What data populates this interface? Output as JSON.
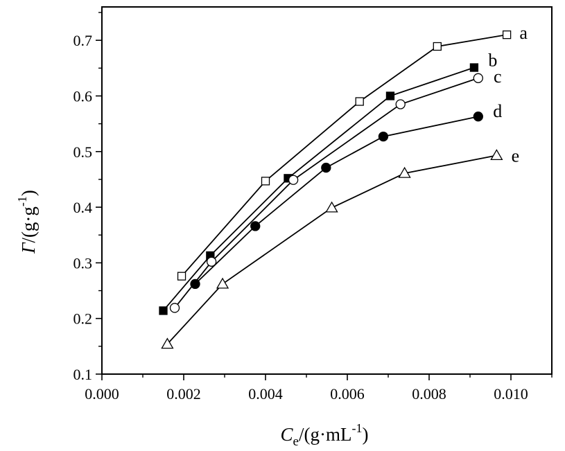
{
  "chart_data": {
    "type": "line",
    "title": "",
    "xlabel": {
      "symbol": "C",
      "subscript": "e",
      "unit_prefix": "/(g·mL",
      "unit_exp": "-1",
      "unit_suffix": ")"
    },
    "ylabel": {
      "symbol": "Γ",
      "unit_prefix": "/(g·g",
      "unit_exp": "-1",
      "unit_suffix": ")"
    },
    "xlim": [
      0.0,
      0.011
    ],
    "ylim": [
      0.1,
      0.76
    ],
    "xticks": [
      0.0,
      0.002,
      0.004,
      0.006,
      0.008,
      0.01
    ],
    "xtick_labels": [
      "0.000",
      "0.002",
      "0.004",
      "0.006",
      "0.008",
      "0.010"
    ],
    "yticks": [
      0.1,
      0.2,
      0.3,
      0.4,
      0.5,
      0.6,
      0.7
    ],
    "ytick_labels": [
      "0.1",
      "0.2",
      "0.3",
      "0.4",
      "0.5",
      "0.6",
      "0.7"
    ],
    "grid": false,
    "legend": "none",
    "series": [
      {
        "label": "a",
        "marker": "square-open",
        "x": [
          0.00195,
          0.004,
          0.0063,
          0.0082,
          0.0099
        ],
        "y": [
          0.276,
          0.447,
          0.59,
          0.689,
          0.71
        ]
      },
      {
        "label": "b",
        "marker": "square-filled",
        "x": [
          0.0015,
          0.00265,
          0.00455,
          0.00705,
          0.0091
        ],
        "y": [
          0.214,
          0.313,
          0.452,
          0.6,
          0.651
        ]
      },
      {
        "label": "c",
        "marker": "circle-open",
        "x": [
          0.00178,
          0.00268,
          0.00468,
          0.0073,
          0.0092
        ],
        "y": [
          0.219,
          0.302,
          0.449,
          0.585,
          0.632
        ]
      },
      {
        "label": "d",
        "marker": "circle-filled",
        "x": [
          0.00228,
          0.00375,
          0.00548,
          0.00688,
          0.0092
        ],
        "y": [
          0.262,
          0.366,
          0.471,
          0.527,
          0.563
        ]
      },
      {
        "label": "e",
        "marker": "triangle-open",
        "x": [
          0.0016,
          0.00295,
          0.00562,
          0.0074,
          0.00965
        ],
        "y": [
          0.154,
          0.262,
          0.399,
          0.461,
          0.493
        ]
      }
    ]
  }
}
